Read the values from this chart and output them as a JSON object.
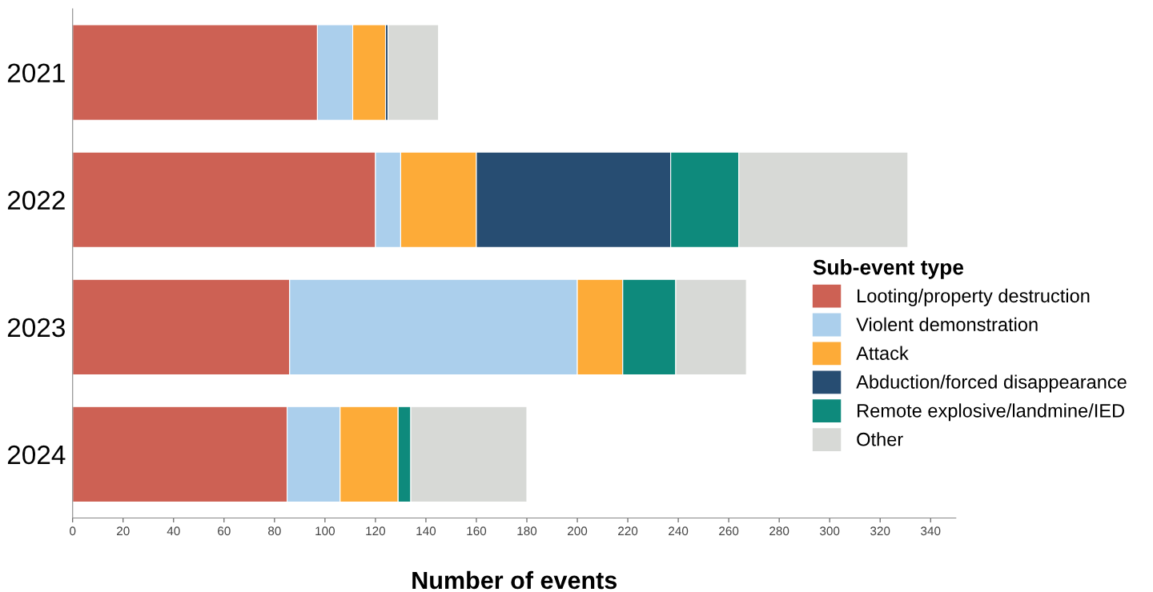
{
  "chart_data": {
    "type": "bar",
    "orientation": "horizontal",
    "stacked": true,
    "xlabel": "Number of events",
    "legend_title": "Sub-event type",
    "legend": "right",
    "categories": [
      "2021",
      "2022",
      "2023",
      "2024"
    ],
    "series": [
      {
        "name": "Looting/property destruction",
        "color": "#cd6154",
        "values": [
          97,
          120,
          86,
          85
        ]
      },
      {
        "name": "Violent demonstration",
        "color": "#abcfec",
        "values": [
          14,
          10,
          114,
          21
        ]
      },
      {
        "name": "Attack",
        "color": "#fdab38",
        "values": [
          13,
          30,
          18,
          23
        ]
      },
      {
        "name": "Abduction/forced disappearance",
        "color": "#274d72",
        "values": [
          1,
          77,
          0,
          0
        ]
      },
      {
        "name": "Remote explosive/landmine/IED",
        "color": "#0e8a7c",
        "values": [
          0,
          27,
          21,
          5
        ]
      },
      {
        "name": "Other",
        "color": "#d7d9d6",
        "values": [
          20,
          67,
          28,
          46
        ]
      }
    ],
    "xlim": [
      0,
      350
    ],
    "xticks": [
      0,
      20,
      40,
      60,
      80,
      100,
      120,
      140,
      160,
      180,
      200,
      220,
      240,
      260,
      280,
      300,
      320,
      340
    ],
    "grid": false
  }
}
